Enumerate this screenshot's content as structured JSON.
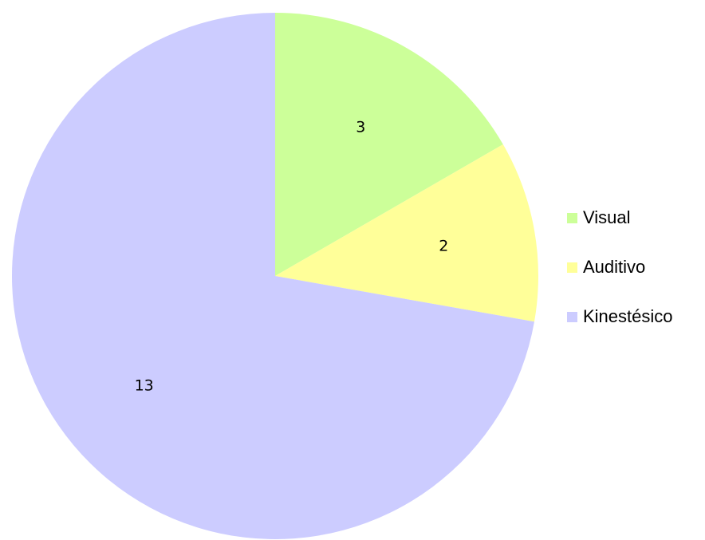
{
  "chart_data": {
    "type": "pie",
    "categories": [
      "Visual",
      "Auditivo",
      "Kinestésico"
    ],
    "values": [
      3,
      2,
      13
    ],
    "colors": [
      "#ccff99",
      "#ffff99",
      "#ccccff"
    ],
    "legend": "right"
  }
}
